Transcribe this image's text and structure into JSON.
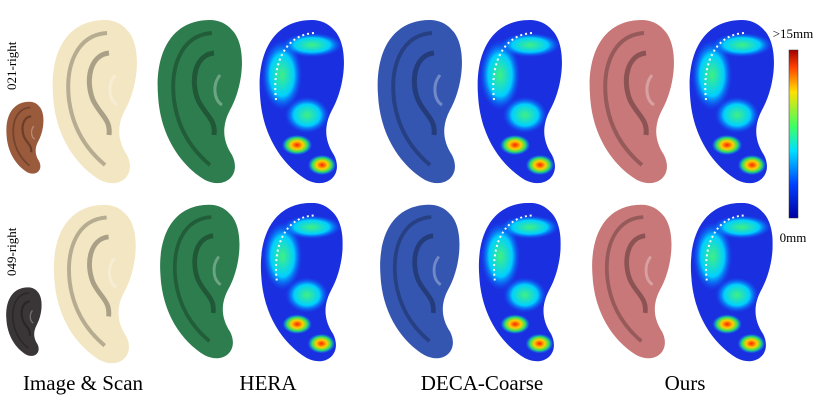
{
  "rows": [
    {
      "label": "021-right"
    },
    {
      "label": "049-right"
    }
  ],
  "columns": [
    "Image & Scan",
    "HERA",
    "DECA-Coarse",
    "Ours"
  ],
  "colorbar": {
    "max_label": ">15mm",
    "min_label": "0mm"
  }
}
